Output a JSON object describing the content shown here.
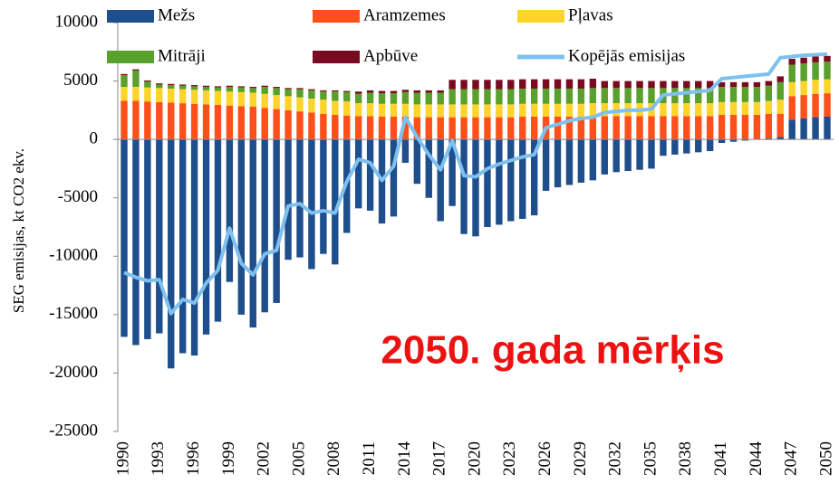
{
  "chart_data": {
    "type": "bar",
    "stacked": true,
    "ylabel": "SEG emisijas, kt CO2 ekv.",
    "annotation": "2050. gada mērķis",
    "categories": [
      "1990",
      null,
      null,
      "1993",
      null,
      null,
      "1996",
      null,
      null,
      "1999",
      null,
      null,
      "2002",
      null,
      null,
      "2005",
      null,
      null,
      "2008",
      null,
      null,
      "2011",
      null,
      null,
      "2014",
      null,
      null,
      "2017",
      null,
      null,
      "2020",
      null,
      null,
      "2023",
      null,
      null,
      "2026",
      null,
      null,
      "2029",
      null,
      null,
      "2032",
      null,
      null,
      "2035",
      null,
      null,
      "2038",
      null,
      null,
      "2041",
      null,
      null,
      "2044",
      null,
      null,
      "2047",
      null,
      null,
      "2050"
    ],
    "ylim": [
      -25000,
      10000
    ],
    "yticks": [
      10000,
      5000,
      0,
      -5000,
      -10000,
      -15000,
      -20000,
      -25000
    ],
    "series": [
      {
        "name": "Mežs",
        "color": "#1f4e8c",
        "values": [
          -16900,
          -17600,
          -17100,
          -16600,
          -19600,
          -18300,
          -18500,
          -16700,
          -15600,
          -12200,
          -15000,
          -16100,
          -14800,
          -14000,
          -10300,
          -10100,
          -11100,
          -9800,
          -10700,
          -8000,
          -5900,
          -6100,
          -7200,
          -6600,
          -2000,
          -3800,
          -5000,
          -7000,
          -5700,
          -8100,
          -8300,
          -7500,
          -7300,
          -7000,
          -6800,
          -6500,
          -4400,
          -4100,
          -3900,
          -3700,
          -3500,
          -3000,
          -2800,
          -2700,
          -2600,
          -2500,
          -1400,
          -1300,
          -1200,
          -1100,
          -1000,
          -300,
          -200,
          -100,
          0,
          100,
          200,
          1700,
          1800,
          1900,
          1950
        ]
      },
      {
        "name": "Aramzemes",
        "color": "#ff4f1a",
        "values": [
          3300,
          3300,
          3250,
          3200,
          3150,
          3100,
          3050,
          3000,
          2950,
          2900,
          2850,
          2800,
          2700,
          2600,
          2500,
          2400,
          2300,
          2200,
          2100,
          2050,
          2000,
          2000,
          1950,
          1950,
          1950,
          1900,
          1900,
          1900,
          1900,
          1900,
          1900,
          1900,
          1900,
          1900,
          1950,
          1950,
          1950,
          1950,
          1950,
          1950,
          2000,
          2000,
          2000,
          2000,
          2000,
          2000,
          2000,
          2000,
          2000,
          2000,
          2000,
          2100,
          2100,
          2100,
          2100,
          2100,
          2000,
          2000,
          2000,
          2000,
          2000
        ]
      },
      {
        "name": "Pļavas",
        "color": "#ffd42a",
        "values": [
          1200,
          1200,
          1200,
          1200,
          1200,
          1200,
          1200,
          1200,
          1200,
          1200,
          1200,
          1200,
          1200,
          1200,
          1200,
          1200,
          1200,
          1200,
          1200,
          1200,
          1100,
          1100,
          1100,
          1100,
          1100,
          1100,
          1100,
          1100,
          1100,
          1100,
          1100,
          1100,
          1100,
          1100,
          1100,
          1100,
          1100,
          1100,
          1100,
          1100,
          1100,
          1100,
          1100,
          1100,
          1100,
          1100,
          1100,
          1100,
          1100,
          1100,
          1100,
          1100,
          1100,
          1100,
          1100,
          1100,
          1200,
          1200,
          1200,
          1200,
          1200
        ]
      },
      {
        "name": "Mitrāji",
        "color": "#5aa02c",
        "values": [
          1000,
          1400,
          500,
          300,
          300,
          300,
          300,
          300,
          300,
          400,
          400,
          400,
          600,
          600,
          600,
          700,
          700,
          700,
          800,
          800,
          800,
          900,
          900,
          900,
          1000,
          1000,
          1000,
          1000,
          1300,
          1300,
          1300,
          1300,
          1300,
          1300,
          1300,
          1300,
          1300,
          1300,
          1300,
          1300,
          1300,
          1300,
          1300,
          1300,
          1300,
          1300,
          1300,
          1300,
          1300,
          1300,
          1300,
          1300,
          1300,
          1300,
          1300,
          1300,
          1500,
          1500,
          1500,
          1500,
          1500
        ]
      },
      {
        "name": "Apbūve",
        "color": "#7a0a22",
        "values": [
          100,
          100,
          100,
          100,
          100,
          100,
          100,
          100,
          100,
          100,
          100,
          100,
          100,
          100,
          100,
          100,
          100,
          100,
          100,
          100,
          200,
          200,
          200,
          200,
          200,
          200,
          200,
          200,
          800,
          800,
          800,
          800,
          800,
          800,
          800,
          800,
          800,
          800,
          800,
          800,
          800,
          600,
          600,
          600,
          600,
          600,
          600,
          600,
          600,
          600,
          600,
          400,
          400,
          400,
          400,
          400,
          500,
          500,
          500,
          500,
          500
        ]
      },
      {
        "name": "Kopējās emisijas",
        "type": "line",
        "color": "#7ec0ee",
        "values": [
          -11400,
          -11800,
          -12100,
          -12000,
          -14900,
          -13700,
          -14000,
          -12300,
          -11200,
          -7600,
          -10600,
          -11600,
          -9800,
          -9500,
          -5700,
          -5500,
          -6300,
          -6100,
          -6300,
          -3600,
          -1700,
          -2000,
          -3500,
          -2300,
          1900,
          200,
          -1300,
          -2600,
          -100,
          -3100,
          -3200,
          -2500,
          -2100,
          -1800,
          -1500,
          -1300,
          1000,
          1300,
          1600,
          1800,
          1900,
          2300,
          2400,
          2500,
          2500,
          2600,
          3800,
          3900,
          4000,
          4100,
          4200,
          5200,
          5300,
          5400,
          5500,
          5600,
          7000,
          7100,
          7200,
          7250,
          7300
        ]
      }
    ]
  }
}
